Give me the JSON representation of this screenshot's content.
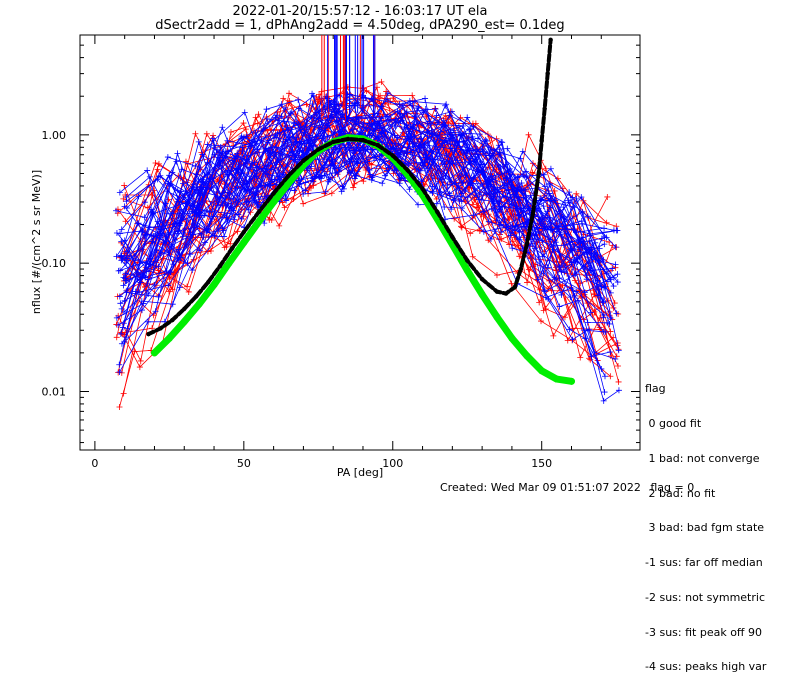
{
  "header": {
    "title_line1": "2022-01-20/15:57:12 - 16:03:17 UT ela",
    "title_line2": "dSectr2add = 1, dPhAng2add = 4.50deg, dPA290_est=   0.1deg"
  },
  "footer": {
    "created": "Created: Wed Mar 09 01:51:07 2022",
    "flag": "flag = 0"
  },
  "legend": {
    "title": "flag",
    "items": [
      " 0 good fit",
      " 1 bad: not converge",
      " 2 bad: no fit",
      " 3 bad: bad fgm state",
      "-1 sus: far off median",
      "-2 sus: not symmetric",
      "-3 sus: fit peak off 90",
      "-4 sus: peaks high var"
    ]
  },
  "chart_data": {
    "type": "line",
    "title": "2022-01-20/15:57:12 - 16:03:17 UT ela",
    "subtitle": "dSectr2add = 1, dPhAng2add = 4.50deg, dPA290_est=   0.1deg",
    "xlabel": "PA [deg]",
    "ylabel": "nflux [#/(cm^2 s sr MeV)]",
    "xlim": [
      -5,
      183
    ],
    "ylim": [
      0.0035,
      6.0
    ],
    "yscale": "log",
    "xticks": [
      "0",
      "50",
      "100",
      "150"
    ],
    "yticks": [
      "0.01",
      "0.10",
      "1.00"
    ],
    "colors": {
      "red": "#ff0000",
      "blue": "#0000ff",
      "green": "#00ee00",
      "black": "#000000"
    },
    "series": [
      {
        "color": "green",
        "x": [
          20,
          25,
          30,
          35,
          40,
          45,
          50,
          55,
          60,
          65,
          70,
          75,
          80,
          85,
          90,
          95,
          100,
          105,
          110,
          115,
          120,
          125,
          130,
          135,
          140,
          145,
          150,
          155,
          160
        ],
        "y": [
          0.02,
          0.026,
          0.035,
          0.048,
          0.068,
          0.1,
          0.145,
          0.21,
          0.3,
          0.42,
          0.58,
          0.75,
          0.88,
          0.95,
          0.93,
          0.82,
          0.66,
          0.49,
          0.34,
          0.22,
          0.14,
          0.088,
          0.057,
          0.038,
          0.026,
          0.019,
          0.0145,
          0.0125,
          0.012
        ]
      },
      {
        "color": "black",
        "x": [
          18,
          22,
          26,
          30,
          34,
          38,
          42,
          46,
          50,
          55,
          60,
          65,
          70,
          75,
          80,
          85,
          90,
          95,
          100,
          105,
          110,
          115,
          120,
          125,
          130,
          135,
          138,
          141,
          143,
          145,
          147,
          149,
          150,
          151,
          152,
          153
        ],
        "y": [
          0.028,
          0.031,
          0.036,
          0.044,
          0.055,
          0.071,
          0.095,
          0.13,
          0.175,
          0.25,
          0.35,
          0.48,
          0.63,
          0.77,
          0.88,
          0.93,
          0.91,
          0.83,
          0.69,
          0.53,
          0.38,
          0.25,
          0.16,
          0.105,
          0.075,
          0.06,
          0.058,
          0.065,
          0.09,
          0.14,
          0.24,
          0.5,
          0.9,
          1.6,
          3.0,
          5.5
        ]
      }
    ]
  }
}
